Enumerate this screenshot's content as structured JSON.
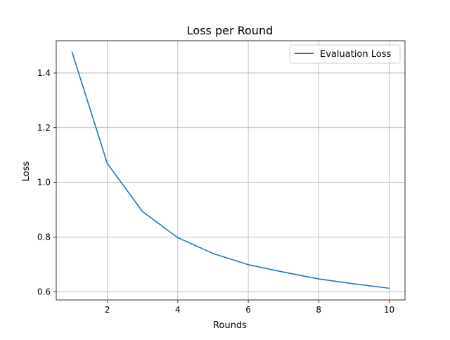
{
  "chart_data": {
    "type": "line",
    "title": "Loss per Round",
    "xlabel": "Rounds",
    "ylabel": "Loss",
    "x": [
      1,
      2,
      3,
      4,
      5,
      6,
      7,
      8,
      9,
      10
    ],
    "series": [
      {
        "name": "Evaluation Loss",
        "color": "#1f77b4",
        "values": [
          1.476,
          1.069,
          0.893,
          0.798,
          0.74,
          0.699,
          0.672,
          0.647,
          0.629,
          0.613
        ]
      }
    ],
    "xlim": [
      0.55,
      10.45
    ],
    "ylim": [
      0.57,
      1.518
    ],
    "xticks": [
      2,
      4,
      6,
      8,
      10
    ],
    "xtick_labels": [
      "2",
      "4",
      "6",
      "8",
      "10"
    ],
    "yticks": [
      0.6,
      0.8,
      1.0,
      1.2,
      1.4
    ],
    "ytick_labels": [
      "0.6",
      "0.8",
      "1.0",
      "1.2",
      "1.4"
    ],
    "grid": true,
    "legend_position": "top-right"
  }
}
